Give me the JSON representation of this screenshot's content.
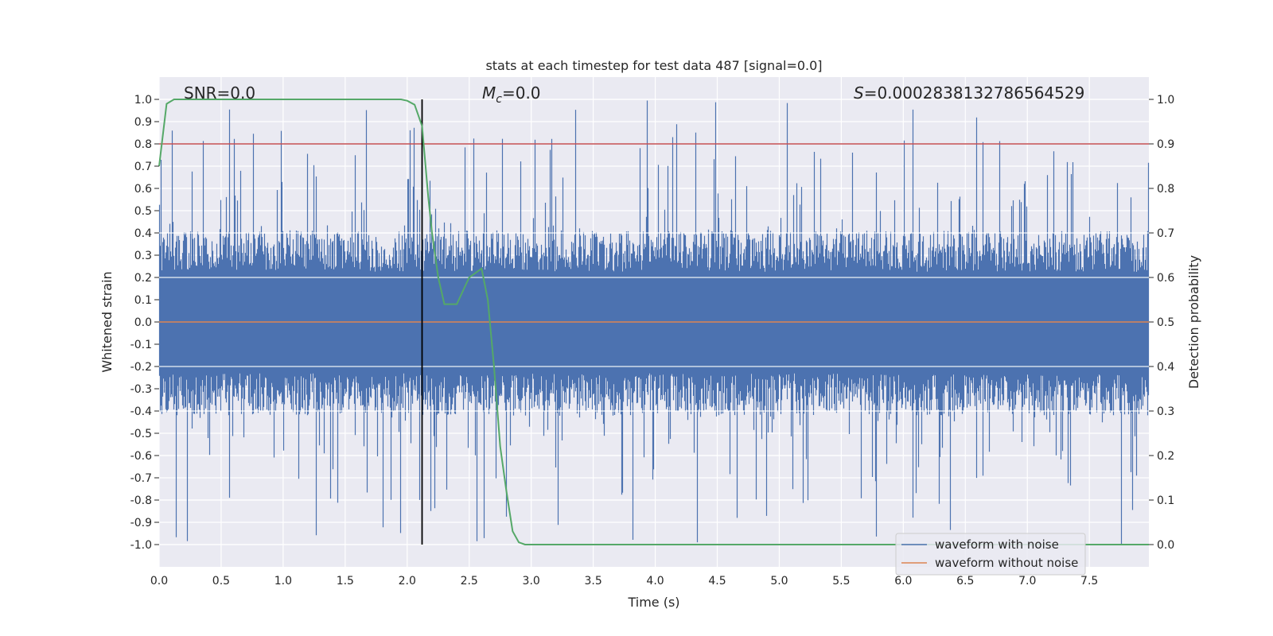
{
  "chart_data": {
    "type": "line",
    "title": "stats at each timestep for test data 487 [signal=0.0]",
    "xlabel": "Time (s)",
    "ylabel_left": "Whitened strain",
    "ylabel_right": "Detection probability",
    "xlim": [
      0.0,
      7.98
    ],
    "ylim_left": [
      -1.1,
      1.1
    ],
    "ylim_right": [
      -0.05,
      1.05
    ],
    "x_ticks": [
      "0.0",
      "0.5",
      "1.0",
      "1.5",
      "2.0",
      "2.5",
      "3.0",
      "3.5",
      "4.0",
      "4.5",
      "5.0",
      "5.5",
      "6.0",
      "6.5",
      "7.0",
      "7.5"
    ],
    "y_left_ticks": [
      "-1.0",
      "-0.9",
      "-0.8",
      "-0.7",
      "-0.6",
      "-0.5",
      "-0.4",
      "-0.3",
      "-0.2",
      "-0.1",
      "0.0",
      "0.1",
      "0.2",
      "0.3",
      "0.4",
      "0.5",
      "0.6",
      "0.7",
      "0.8",
      "0.9",
      "1.0"
    ],
    "y_right_ticks": [
      "0.0",
      "0.1",
      "0.2",
      "0.3",
      "0.4",
      "0.5",
      "0.6",
      "0.7",
      "0.8",
      "0.9",
      "1.0"
    ],
    "annotations": {
      "snr": "SNR=0.0",
      "mc_symbol": "M",
      "mc_sub": "c",
      "mc_value": "=0.0",
      "s_symbol": "S",
      "s_value": "=0.0002838132786564529"
    },
    "threshold": {
      "value": 0.9,
      "axis": "right",
      "color": "#c44e52"
    },
    "marker_time": 2.12,
    "noise_band": {
      "min": -0.42,
      "max": 0.41,
      "peak_positive": 1.0,
      "peak_negative": -1.0
    },
    "series": [
      {
        "name": "waveform with noise",
        "color": "#4c72b0",
        "axis": "left",
        "description_values": "noisy whitened strain, mostly within ±0.4 with spikes to ±1.0"
      },
      {
        "name": "waveform without noise",
        "color": "#dd8452",
        "axis": "left",
        "constant": 0.0
      },
      {
        "name": "detection probability",
        "color": "#55a868",
        "axis": "right",
        "x": [
          0.0,
          0.06,
          0.12,
          0.25,
          0.5,
          1.0,
          1.5,
          1.8,
          1.95,
          2.0,
          2.06,
          2.12,
          2.17,
          2.2,
          2.25,
          2.3,
          2.4,
          2.5,
          2.55,
          2.6,
          2.65,
          2.7,
          2.75,
          2.8,
          2.85,
          2.9,
          2.95,
          3.0,
          3.5,
          4.0,
          5.0,
          6.0,
          7.0,
          7.98
        ],
        "y": [
          0.85,
          0.99,
          1.0,
          1.0,
          1.0,
          1.0,
          1.0,
          1.0,
          1.0,
          0.997,
          0.988,
          0.94,
          0.78,
          0.7,
          0.6,
          0.54,
          0.54,
          0.6,
          0.61,
          0.62,
          0.55,
          0.4,
          0.22,
          0.12,
          0.03,
          0.005,
          0.0,
          0.0,
          0.0,
          0.0,
          0.0,
          0.0,
          0.0,
          0.0
        ]
      }
    ],
    "legend": {
      "location": "lower right",
      "entries": [
        {
          "label": "waveform with noise",
          "color": "#4c72b0"
        },
        {
          "label": "waveform without noise",
          "color": "#dd8452"
        }
      ]
    }
  }
}
